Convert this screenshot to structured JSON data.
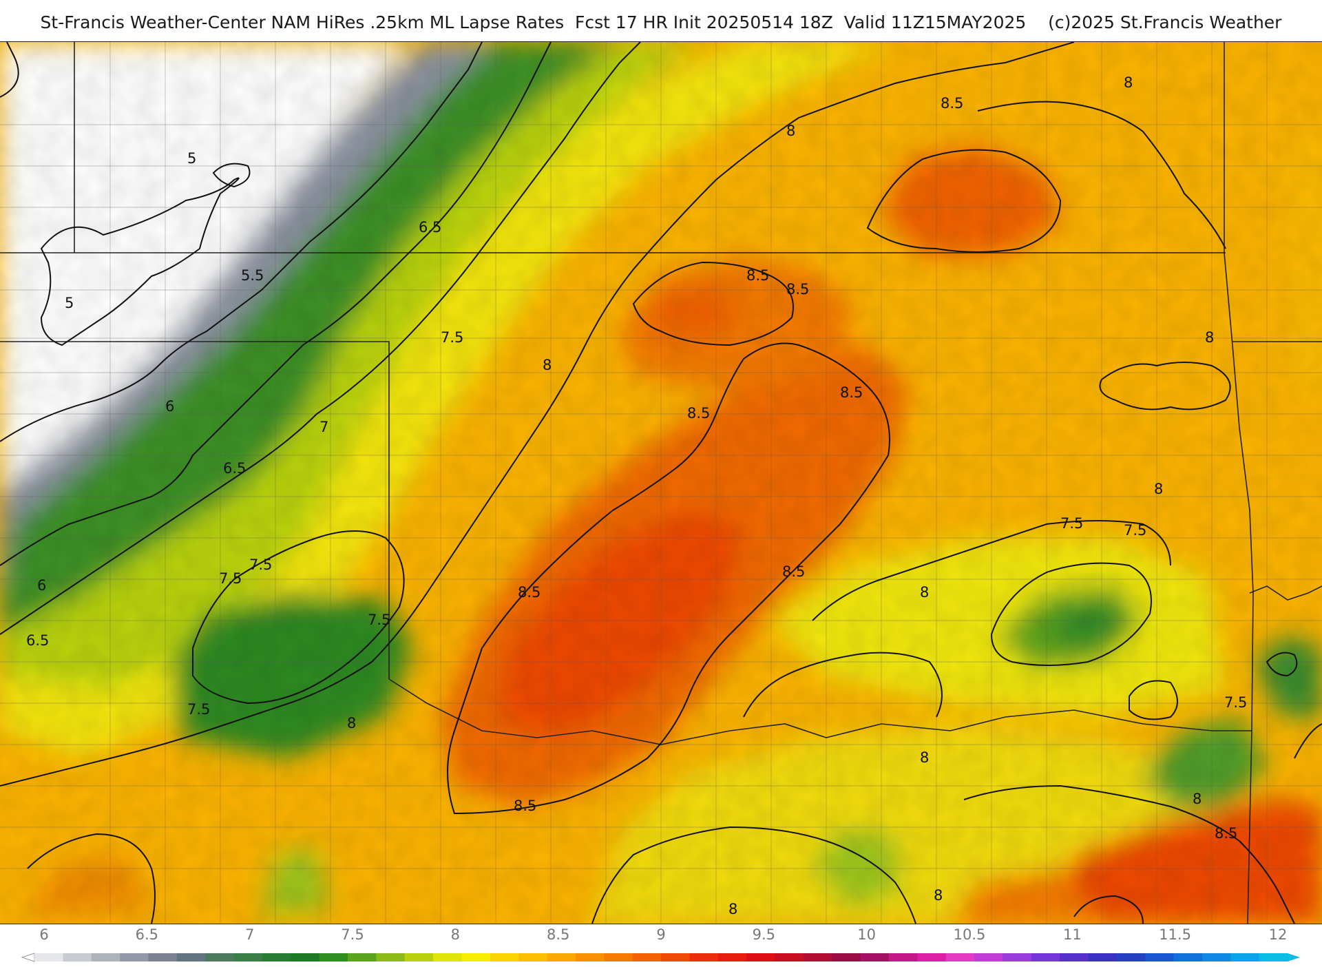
{
  "title": "St-Francis Weather-Center NAM HiRes .25km ML Lapse Rates  Fcst 17 HR Init 20250514 18Z  Valid 11Z15MAY2025    (c)2025 St.Francis Weather",
  "contour_labels": [
    "5",
    "5",
    "5.5",
    "6",
    "6",
    "6.5",
    "6.5",
    "6.5",
    "7",
    "7.5",
    "7.5",
    "7.5",
    "7.5",
    "7.5",
    "7.5",
    "7.5",
    "7.5",
    "8",
    "8",
    "8",
    "8",
    "8",
    "8",
    "8",
    "8",
    "8",
    "8",
    "8",
    "8.5",
    "8.5",
    "8.5",
    "8.5",
    "8.5",
    "8.5",
    "8.5",
    "8.5",
    "8.5"
  ],
  "legend": {
    "tick_labels": [
      "6",
      "6.5",
      "7",
      "7.5",
      "8",
      "8.5",
      "9",
      "9.5",
      "10",
      "10.5",
      "11",
      "11.5",
      "12"
    ],
    "colors": [
      "#e6e7ea",
      "#c9ccd2",
      "#aeb2bb",
      "#9398a4",
      "#7c8290",
      "#627480",
      "#4d7a5c",
      "#3a7f47",
      "#277e33",
      "#1c7a26",
      "#2d8f1e",
      "#5ca31e",
      "#8cbb18",
      "#b8d10f",
      "#e0e509",
      "#f7ee00",
      "#fbd400",
      "#fbbe00",
      "#fba800",
      "#f79100",
      "#f47a00",
      "#f26300",
      "#ef4a05",
      "#ec2f0a",
      "#e61c0f",
      "#de0f14",
      "#c80f22",
      "#b00e32",
      "#9a0d45",
      "#a51264",
      "#c41886",
      "#df1ea6",
      "#e43ac4",
      "#c13dd6",
      "#9a3ddc",
      "#7436d8",
      "#5530cc",
      "#3a31c4",
      "#2640c4",
      "#1857d0",
      "#1270dc",
      "#0e8ae4",
      "#0ca4e8",
      "#0bbce6"
    ]
  }
}
